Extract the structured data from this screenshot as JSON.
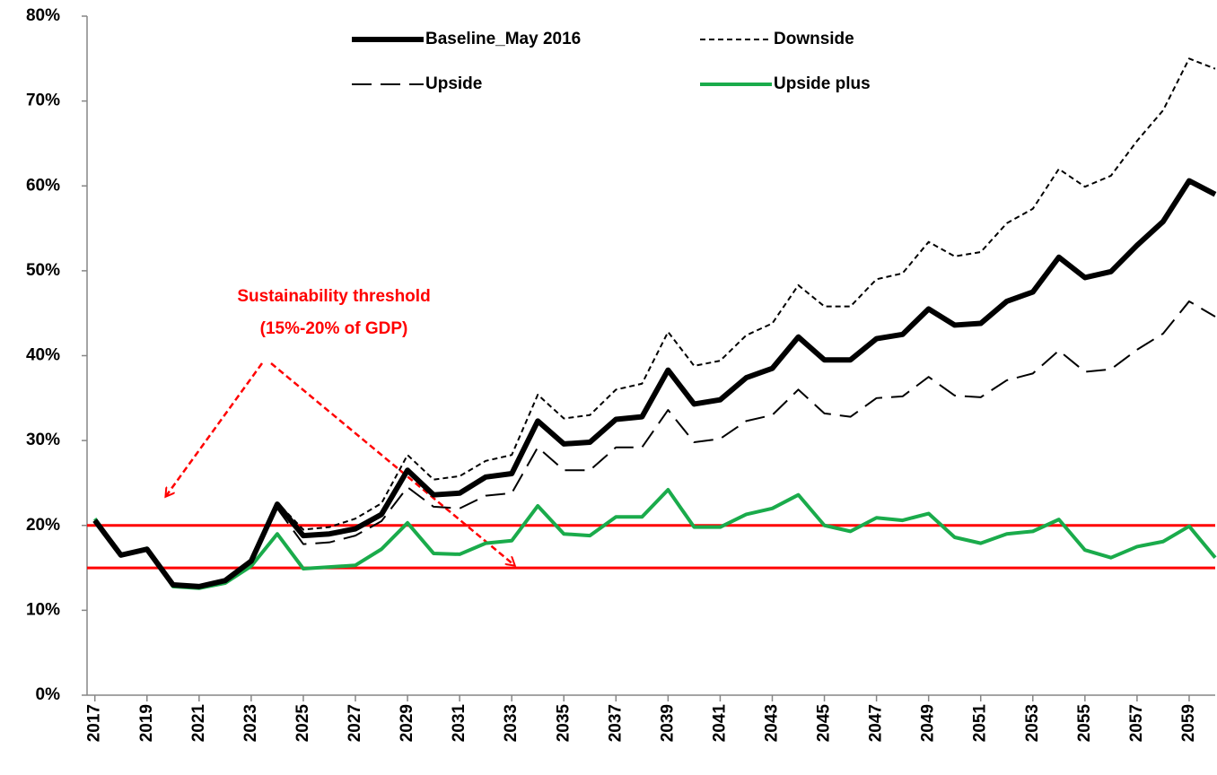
{
  "chart_data": {
    "type": "line",
    "x": [
      2017,
      2018,
      2019,
      2020,
      2021,
      2022,
      2023,
      2024,
      2025,
      2026,
      2027,
      2028,
      2029,
      2030,
      2031,
      2032,
      2033,
      2034,
      2035,
      2036,
      2037,
      2038,
      2039,
      2040,
      2041,
      2042,
      2043,
      2044,
      2045,
      2046,
      2047,
      2048,
      2049,
      2050,
      2051,
      2052,
      2053,
      2054,
      2055,
      2056,
      2057,
      2058,
      2059,
      2060
    ],
    "xlim": [
      2016.7,
      2060
    ],
    "xticks": [
      2017,
      2019,
      2021,
      2023,
      2025,
      2027,
      2029,
      2031,
      2033,
      2035,
      2037,
      2039,
      2041,
      2043,
      2045,
      2047,
      2049,
      2051,
      2053,
      2055,
      2057,
      2059
    ],
    "ylim": [
      0,
      80
    ],
    "yticks": [
      {
        "value": 0,
        "label": "0%"
      },
      {
        "value": 10,
        "label": "10%"
      },
      {
        "value": 20,
        "label": "20%"
      },
      {
        "value": 30,
        "label": "30%"
      },
      {
        "value": 40,
        "label": "40%"
      },
      {
        "value": 50,
        "label": "50%"
      },
      {
        "value": 60,
        "label": "60%"
      },
      {
        "value": 70,
        "label": "70%"
      },
      {
        "value": 80,
        "label": "80%"
      }
    ],
    "series": [
      {
        "name": "Baseline_May 2016",
        "color": "#000000",
        "line_style": "solid",
        "line_width": 6,
        "values": [
          20.6,
          16.5,
          17.2,
          13,
          12.8,
          13.5,
          15.8,
          22.5,
          18.8,
          19,
          19.6,
          21.3,
          26.5,
          23.6,
          23.8,
          25.7,
          26.1,
          32.3,
          29.6,
          29.8,
          32.5,
          32.8,
          38.3,
          34.3,
          34.8,
          37.4,
          38.5,
          42.2,
          39.5,
          39.5,
          42,
          42.5,
          45.5,
          43.6,
          43.8,
          46.4,
          47.5,
          51.6,
          49.2,
          49.9,
          53,
          55.8,
          60.6,
          59
        ]
      },
      {
        "name": "Downside",
        "color": "#000000",
        "line_style": "dotted",
        "line_width": 2,
        "values": [
          20.6,
          16.5,
          17.2,
          13,
          12.8,
          13.6,
          16,
          22.7,
          19.5,
          19.8,
          20.8,
          22.6,
          28.3,
          25.4,
          25.8,
          27.6,
          28.3,
          35.4,
          32.6,
          33,
          36,
          36.7,
          42.8,
          38.8,
          39.4,
          42.4,
          43.8,
          48.3,
          45.8,
          45.8,
          49,
          49.7,
          53.4,
          51.7,
          52.2,
          55.6,
          57.3,
          62,
          59.9,
          61.2,
          65.3,
          68.9,
          75,
          73.8
        ]
      },
      {
        "name": "Upside",
        "color": "#000000",
        "line_style": "dashed",
        "line_width": 2,
        "values": [
          20.6,
          16.5,
          17.2,
          13,
          12.8,
          13.4,
          15.5,
          22,
          17.8,
          18,
          18.8,
          20.5,
          24.5,
          22.2,
          22,
          23.5,
          23.8,
          29.2,
          26.5,
          26.5,
          29.2,
          29.2,
          33.6,
          29.8,
          30.2,
          32.3,
          33,
          36,
          33.2,
          32.8,
          35,
          35.2,
          37.5,
          35.3,
          35.1,
          37.1,
          37.9,
          40.6,
          38.1,
          38.4,
          40.7,
          42.6,
          46.4,
          44.6
        ]
      },
      {
        "name": "Upside plus",
        "color": "#1aab4b",
        "line_style": "solid",
        "line_width": 4,
        "values": [
          20.8,
          16.5,
          17.3,
          12.8,
          12.6,
          13.2,
          15.2,
          19,
          14.9,
          15.1,
          15.3,
          17.2,
          20.3,
          16.7,
          16.6,
          17.9,
          18.2,
          22.3,
          19,
          18.8,
          21,
          21,
          24.2,
          19.8,
          19.8,
          21.3,
          22,
          23.6,
          20,
          19.3,
          20.9,
          20.6,
          21.4,
          18.6,
          17.9,
          19,
          19.3,
          20.7,
          17.1,
          16.2,
          17.5,
          18.1,
          19.9,
          16.2
        ]
      }
    ],
    "thresholds": [
      15,
      20
    ],
    "threshold_color": "#ff0000",
    "annotation": [
      "Sustainability  threshold",
      "(15%-20% of GDP)"
    ],
    "legend": "top"
  }
}
